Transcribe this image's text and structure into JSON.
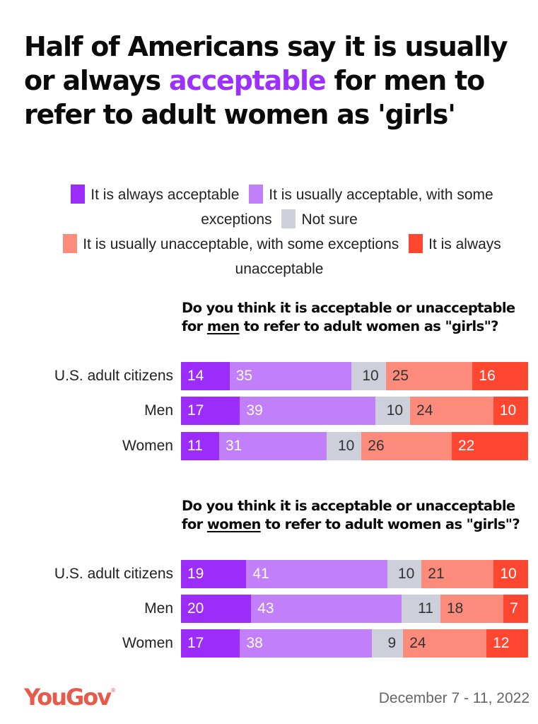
{
  "title": {
    "before": "Half of Americans say it is usually or always ",
    "highlight": "acceptable",
    "after": " for men to refer to adult women as 'girls'",
    "highlight_color": "#9b30ff"
  },
  "legend": [
    {
      "label": "It is always acceptable",
      "color": "#9b2cfa"
    },
    {
      "label": "It is usually acceptable, with some exceptions",
      "color": "#c27ffa"
    },
    {
      "label": "Not sure",
      "color": "#cdd0da"
    },
    {
      "label": "It is usually unacceptable, with some exceptions",
      "color": "#fd8b7b"
    },
    {
      "label": "It is always unacceptable",
      "color": "#ff4630"
    }
  ],
  "chart_data": [
    {
      "type": "bar",
      "orientation": "horizontal-stacked-100",
      "title": {
        "before": "Do you think it is acceptable or unacceptable for ",
        "underlined": "men",
        "after": " to refer to adult women as \"girls\"?"
      },
      "categories": [
        "U.S. adult citizens",
        "Men",
        "Women"
      ],
      "series": [
        {
          "name": "It is always acceptable",
          "values": [
            14,
            17,
            11
          ]
        },
        {
          "name": "It is usually acceptable, with some exceptions",
          "values": [
            35,
            39,
            31
          ]
        },
        {
          "name": "Not sure",
          "values": [
            10,
            10,
            10
          ]
        },
        {
          "name": "It is usually unacceptable, with some exceptions",
          "values": [
            25,
            24,
            26
          ]
        },
        {
          "name": "It is always unacceptable",
          "values": [
            16,
            10,
            22
          ]
        }
      ],
      "xlabel": "",
      "ylabel": "",
      "xlim": [
        0,
        100
      ],
      "legend": "top-center",
      "grid": false
    },
    {
      "type": "bar",
      "orientation": "horizontal-stacked-100",
      "title": {
        "before": "Do you think it is acceptable or unacceptable for ",
        "underlined": "women",
        "after": " to refer to adult women as \"girls\"?"
      },
      "categories": [
        "U.S. adult citizens",
        "Men",
        "Women"
      ],
      "series": [
        {
          "name": "It is always acceptable",
          "values": [
            19,
            20,
            17
          ]
        },
        {
          "name": "It is usually acceptable, with some exceptions",
          "values": [
            41,
            43,
            38
          ]
        },
        {
          "name": "Not sure",
          "values": [
            10,
            11,
            9
          ]
        },
        {
          "name": "It is usually unacceptable, with some exceptions",
          "values": [
            21,
            18,
            24
          ]
        },
        {
          "name": "It is always unacceptable",
          "values": [
            10,
            7,
            12
          ]
        }
      ],
      "xlabel": "",
      "ylabel": "",
      "xlim": [
        0,
        100
      ],
      "legend": "top-center",
      "grid": false
    }
  ],
  "footer": {
    "logo": "YouGov",
    "logo_mark": "®",
    "date": "December 7 - 11, 2022"
  }
}
